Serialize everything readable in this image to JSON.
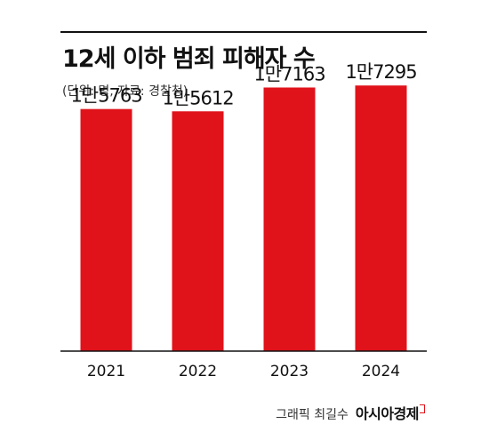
{
  "header": {
    "title": "12세 이하 범죄 피해자 수",
    "subtitle": "(단위: 명, 자료: 경찰청)"
  },
  "credit": {
    "text": "그래픽 최길수",
    "brand": "아시아경제"
  },
  "colors": {
    "bar": "#e0121a",
    "axis": "#111111"
  },
  "chart_data": {
    "type": "bar",
    "categories": [
      "2021",
      "2022",
      "2023",
      "2024"
    ],
    "values": [
      15763,
      15612,
      17163,
      17295
    ],
    "data_labels": [
      "1만5763",
      "1만5612",
      "1만7163",
      "1만7295"
    ],
    "ylim": [
      0,
      18000
    ],
    "grid": false,
    "legend": "none"
  }
}
